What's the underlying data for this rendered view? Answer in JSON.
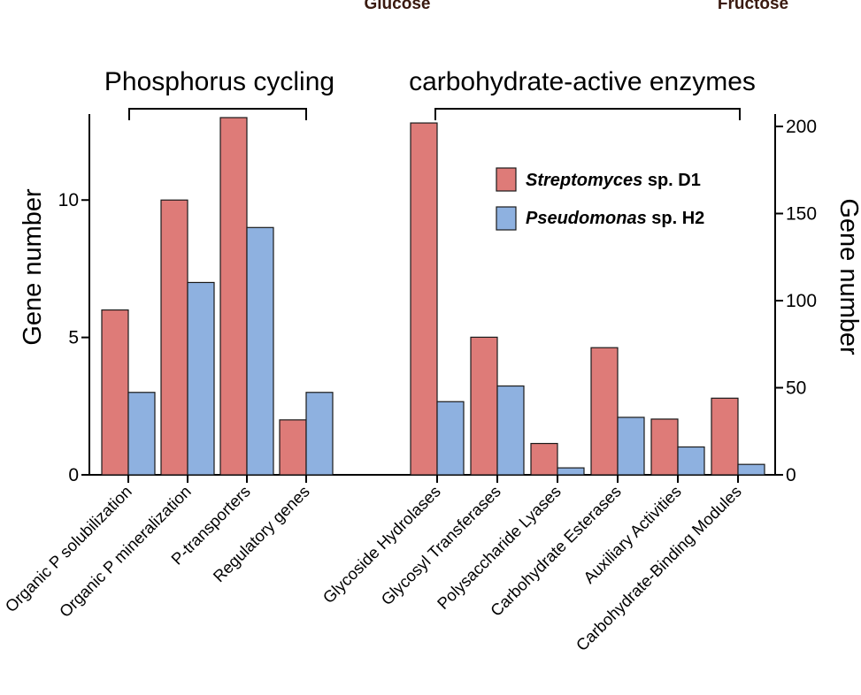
{
  "header": {
    "left": "Glucose",
    "right": "Fructose"
  },
  "colors": {
    "streptomyces": "#de7b78",
    "pseudomonas": "#8eb1e0",
    "stroke": "#1a1a1a"
  },
  "chart_data": [
    {
      "type": "bar",
      "group_title": "Phosphorus cycling",
      "ylabel": "Gene number",
      "yaxis": "left",
      "ylim": [
        0,
        13
      ],
      "yticks": [
        0,
        5,
        10
      ],
      "categories": [
        "Organic P solubilization",
        "Organic P mineralization",
        "P-transporters",
        "Regulatory genes"
      ],
      "series": [
        {
          "name": "Streptomyces sp. D1",
          "values": [
            6,
            10,
            13,
            2
          ]
        },
        {
          "name": "Pseudomonas sp. H2",
          "values": [
            3,
            7,
            9,
            3
          ]
        }
      ]
    },
    {
      "type": "bar",
      "group_title": "carbohydrate-active enzymes",
      "ylabel": "Gene number",
      "yaxis": "right",
      "ylim": [
        0,
        210
      ],
      "yticks": [
        0,
        50,
        100,
        150,
        200
      ],
      "categories": [
        "Glycoside Hydrolases",
        "Glycosyl Transferases",
        "Polysaccharide Lyases",
        "Carbohydrate Esterases",
        "Auxiliary Activities",
        "Carbohydrate-Binding Modules"
      ],
      "series": [
        {
          "name": "Streptomyces sp. D1",
          "values": [
            202,
            79,
            18,
            73,
            32,
            44
          ]
        },
        {
          "name": "Pseudomonas sp. H2",
          "values": [
            42,
            51,
            4,
            33,
            16,
            6
          ]
        }
      ]
    }
  ],
  "legend": {
    "position": "top-right",
    "items": [
      {
        "italic": "Streptomyces",
        "rest": " sp. D1"
      },
      {
        "italic": "Pseudomonas",
        "rest": " sp. H2"
      }
    ]
  }
}
